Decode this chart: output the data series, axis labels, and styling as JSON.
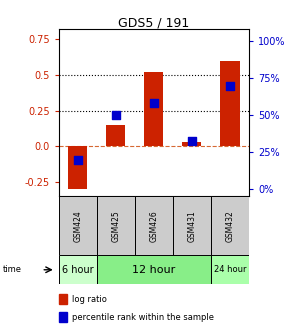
{
  "title": "GDS5 / 191",
  "samples": [
    "GSM424",
    "GSM425",
    "GSM426",
    "GSM431",
    "GSM432"
  ],
  "log_ratios": [
    -0.3,
    0.15,
    0.52,
    0.03,
    0.6
  ],
  "percentile_ranks": [
    20,
    50,
    58,
    33,
    70
  ],
  "bar_color": "#cc2200",
  "dot_color": "#0000cc",
  "ylim_left": [
    -0.35,
    0.82
  ],
  "ylim_right": [
    -4.6,
    108
  ],
  "yticks_left": [
    -0.25,
    0.0,
    0.25,
    0.5,
    0.75
  ],
  "yticks_right": [
    0,
    25,
    50,
    75,
    100
  ],
  "dotted_lines": [
    0.25,
    0.5
  ],
  "dashed_zero_color": "#cc4400",
  "bar_width": 0.5,
  "dot_size": 28,
  "time_data": [
    {
      "start": 0,
      "end": 1,
      "label": "6 hour",
      "color": "#ccffcc",
      "fontsize": 7
    },
    {
      "start": 1,
      "end": 4,
      "label": "12 hour",
      "color": "#88ee88",
      "fontsize": 8
    },
    {
      "start": 4,
      "end": 5,
      "label": "24 hour",
      "color": "#aaffaa",
      "fontsize": 6
    }
  ],
  "legend_items": [
    {
      "label": "log ratio",
      "color": "#cc2200"
    },
    {
      "label": "percentile rank within the sample",
      "color": "#0000cc"
    }
  ],
  "left_tick_color": "#cc2200",
  "right_tick_color": "#0000cc",
  "table_bg": "#cccccc",
  "plot_bg": "#ffffff",
  "title_fontsize": 9,
  "tick_labelsize": 7,
  "sample_fontsize": 5.5,
  "legend_fontsize": 6
}
